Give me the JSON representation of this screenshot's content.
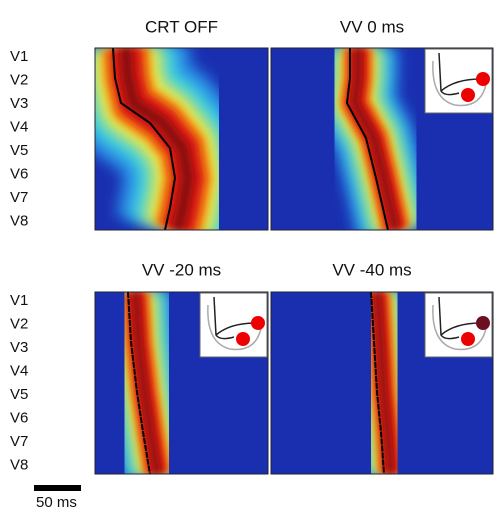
{
  "panels": [
    {
      "title": "CRT OFF"
    },
    {
      "title": "VV 0 ms"
    },
    {
      "title": "VV -20 ms"
    },
    {
      "title": "VV -40 ms"
    }
  ],
  "row_labels": [
    "V1",
    "V2",
    "V3",
    "V4",
    "V5",
    "V6",
    "V7",
    "V8"
  ],
  "scale_bar": {
    "label": "50 ms"
  }
}
